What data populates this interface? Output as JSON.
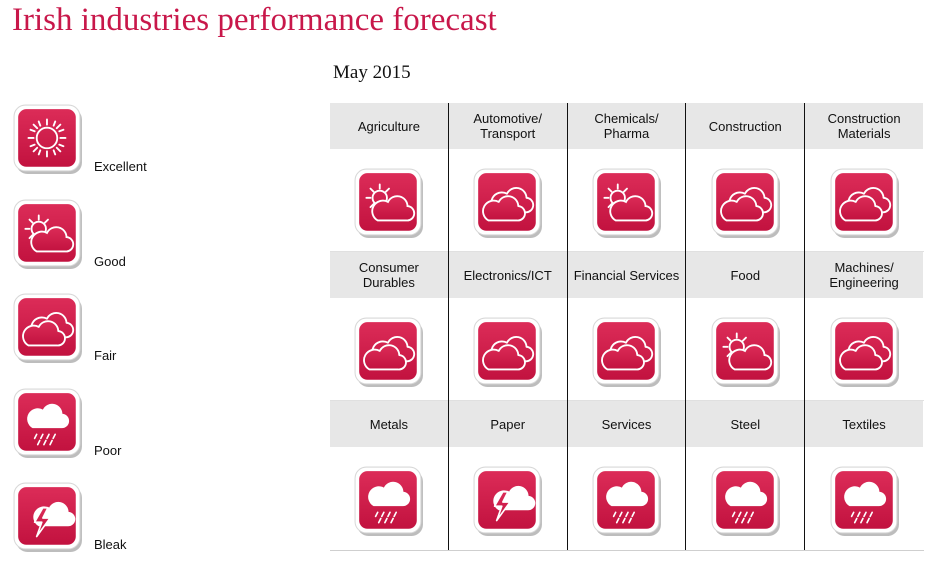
{
  "title": "Irish industries performance forecast",
  "date": "May 2015",
  "legend": [
    "Excellent",
    "Good",
    "Fair",
    "Poor",
    "Bleak"
  ],
  "industries": [
    {
      "name": "Agriculture",
      "rating": "Good"
    },
    {
      "name": "Automotive/\nTransport",
      "rating": "Fair"
    },
    {
      "name": "Chemicals/\nPharma",
      "rating": "Good"
    },
    {
      "name": "Construction",
      "rating": "Fair"
    },
    {
      "name": "Construction\nMaterials",
      "rating": "Fair"
    },
    {
      "name": "Consumer\nDurables",
      "rating": "Fair"
    },
    {
      "name": "Electronics/ICT",
      "rating": "Fair"
    },
    {
      "name": "Financial Services",
      "rating": "Fair"
    },
    {
      "name": "Food",
      "rating": "Good"
    },
    {
      "name": "Machines/\nEngineering",
      "rating": "Fair"
    },
    {
      "name": "Metals",
      "rating": "Poor"
    },
    {
      "name": "Paper",
      "rating": "Bleak"
    },
    {
      "name": "Services",
      "rating": "Poor"
    },
    {
      "name": "Steel",
      "rating": "Poor"
    },
    {
      "name": "Textiles",
      "rating": "Poor"
    }
  ]
}
